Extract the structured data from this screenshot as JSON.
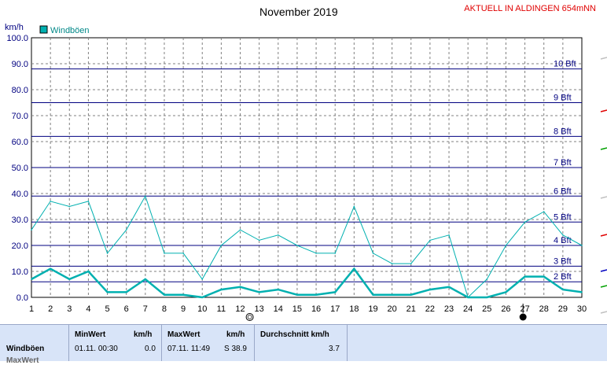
{
  "header": {
    "title": "November 2019",
    "station": "AKTUELL IN ALDINGEN 654mNN"
  },
  "chart_data": {
    "type": "line",
    "title": "November 2019",
    "ylabel": "km/h",
    "ylim": [
      0,
      100
    ],
    "ytick_labels": [
      "0.0",
      "10.0",
      "20.0",
      "30.0",
      "40.0",
      "50.0",
      "60.0",
      "70.0",
      "80.0",
      "90.0",
      "100.0"
    ],
    "x": [
      1,
      2,
      3,
      4,
      5,
      6,
      7,
      8,
      9,
      10,
      11,
      12,
      13,
      14,
      15,
      16,
      17,
      18,
      19,
      20,
      21,
      22,
      23,
      24,
      25,
      26,
      27,
      28,
      29,
      30
    ],
    "series": [
      {
        "name": "Windböen",
        "color": "#00b0b0",
        "values": [
          26,
          37,
          35,
          37,
          17,
          26,
          39,
          17,
          17,
          7,
          20,
          26,
          22,
          24,
          20,
          17,
          17,
          35,
          17,
          13,
          13,
          22,
          24,
          0,
          7,
          20,
          29,
          33,
          24,
          20
        ]
      },
      {
        "name": "",
        "color": "#00b0b0",
        "values": [
          7,
          11,
          7,
          10,
          2,
          2,
          7,
          1,
          1,
          0,
          3,
          4,
          2,
          3,
          1,
          1,
          2,
          11,
          1,
          1,
          1,
          3,
          4,
          0,
          0,
          2,
          8,
          8,
          3,
          2
        ]
      }
    ],
    "legend": [
      "Windböen"
    ],
    "beaufort": [
      {
        "label": "2 Bft",
        "value": 6
      },
      {
        "label": "3 Bft",
        "value": 12
      },
      {
        "label": "4 Bft",
        "value": 20
      },
      {
        "label": "5 Bft",
        "value": 29
      },
      {
        "label": "6 Bft",
        "value": 39
      },
      {
        "label": "7 Bft",
        "value": 50
      },
      {
        "label": "8 Bft",
        "value": 62
      },
      {
        "label": "9 Bft",
        "value": 75
      },
      {
        "label": "10 Bft",
        "value": 88
      }
    ],
    "grid": true
  },
  "footer": {
    "row_label": "Windböen",
    "row_label_2": "MaxWert",
    "min_header": "MinWert",
    "min_unit": "km/h",
    "min_time": "01.11.  00:30",
    "min_value": "0.0",
    "max_header": "MaxWert",
    "max_unit": "km/h",
    "max_time": "07.11.  11:49",
    "max_value": "S 38.9",
    "avg_header": "Durchschnitt km/h",
    "avg_value": "3.7"
  }
}
